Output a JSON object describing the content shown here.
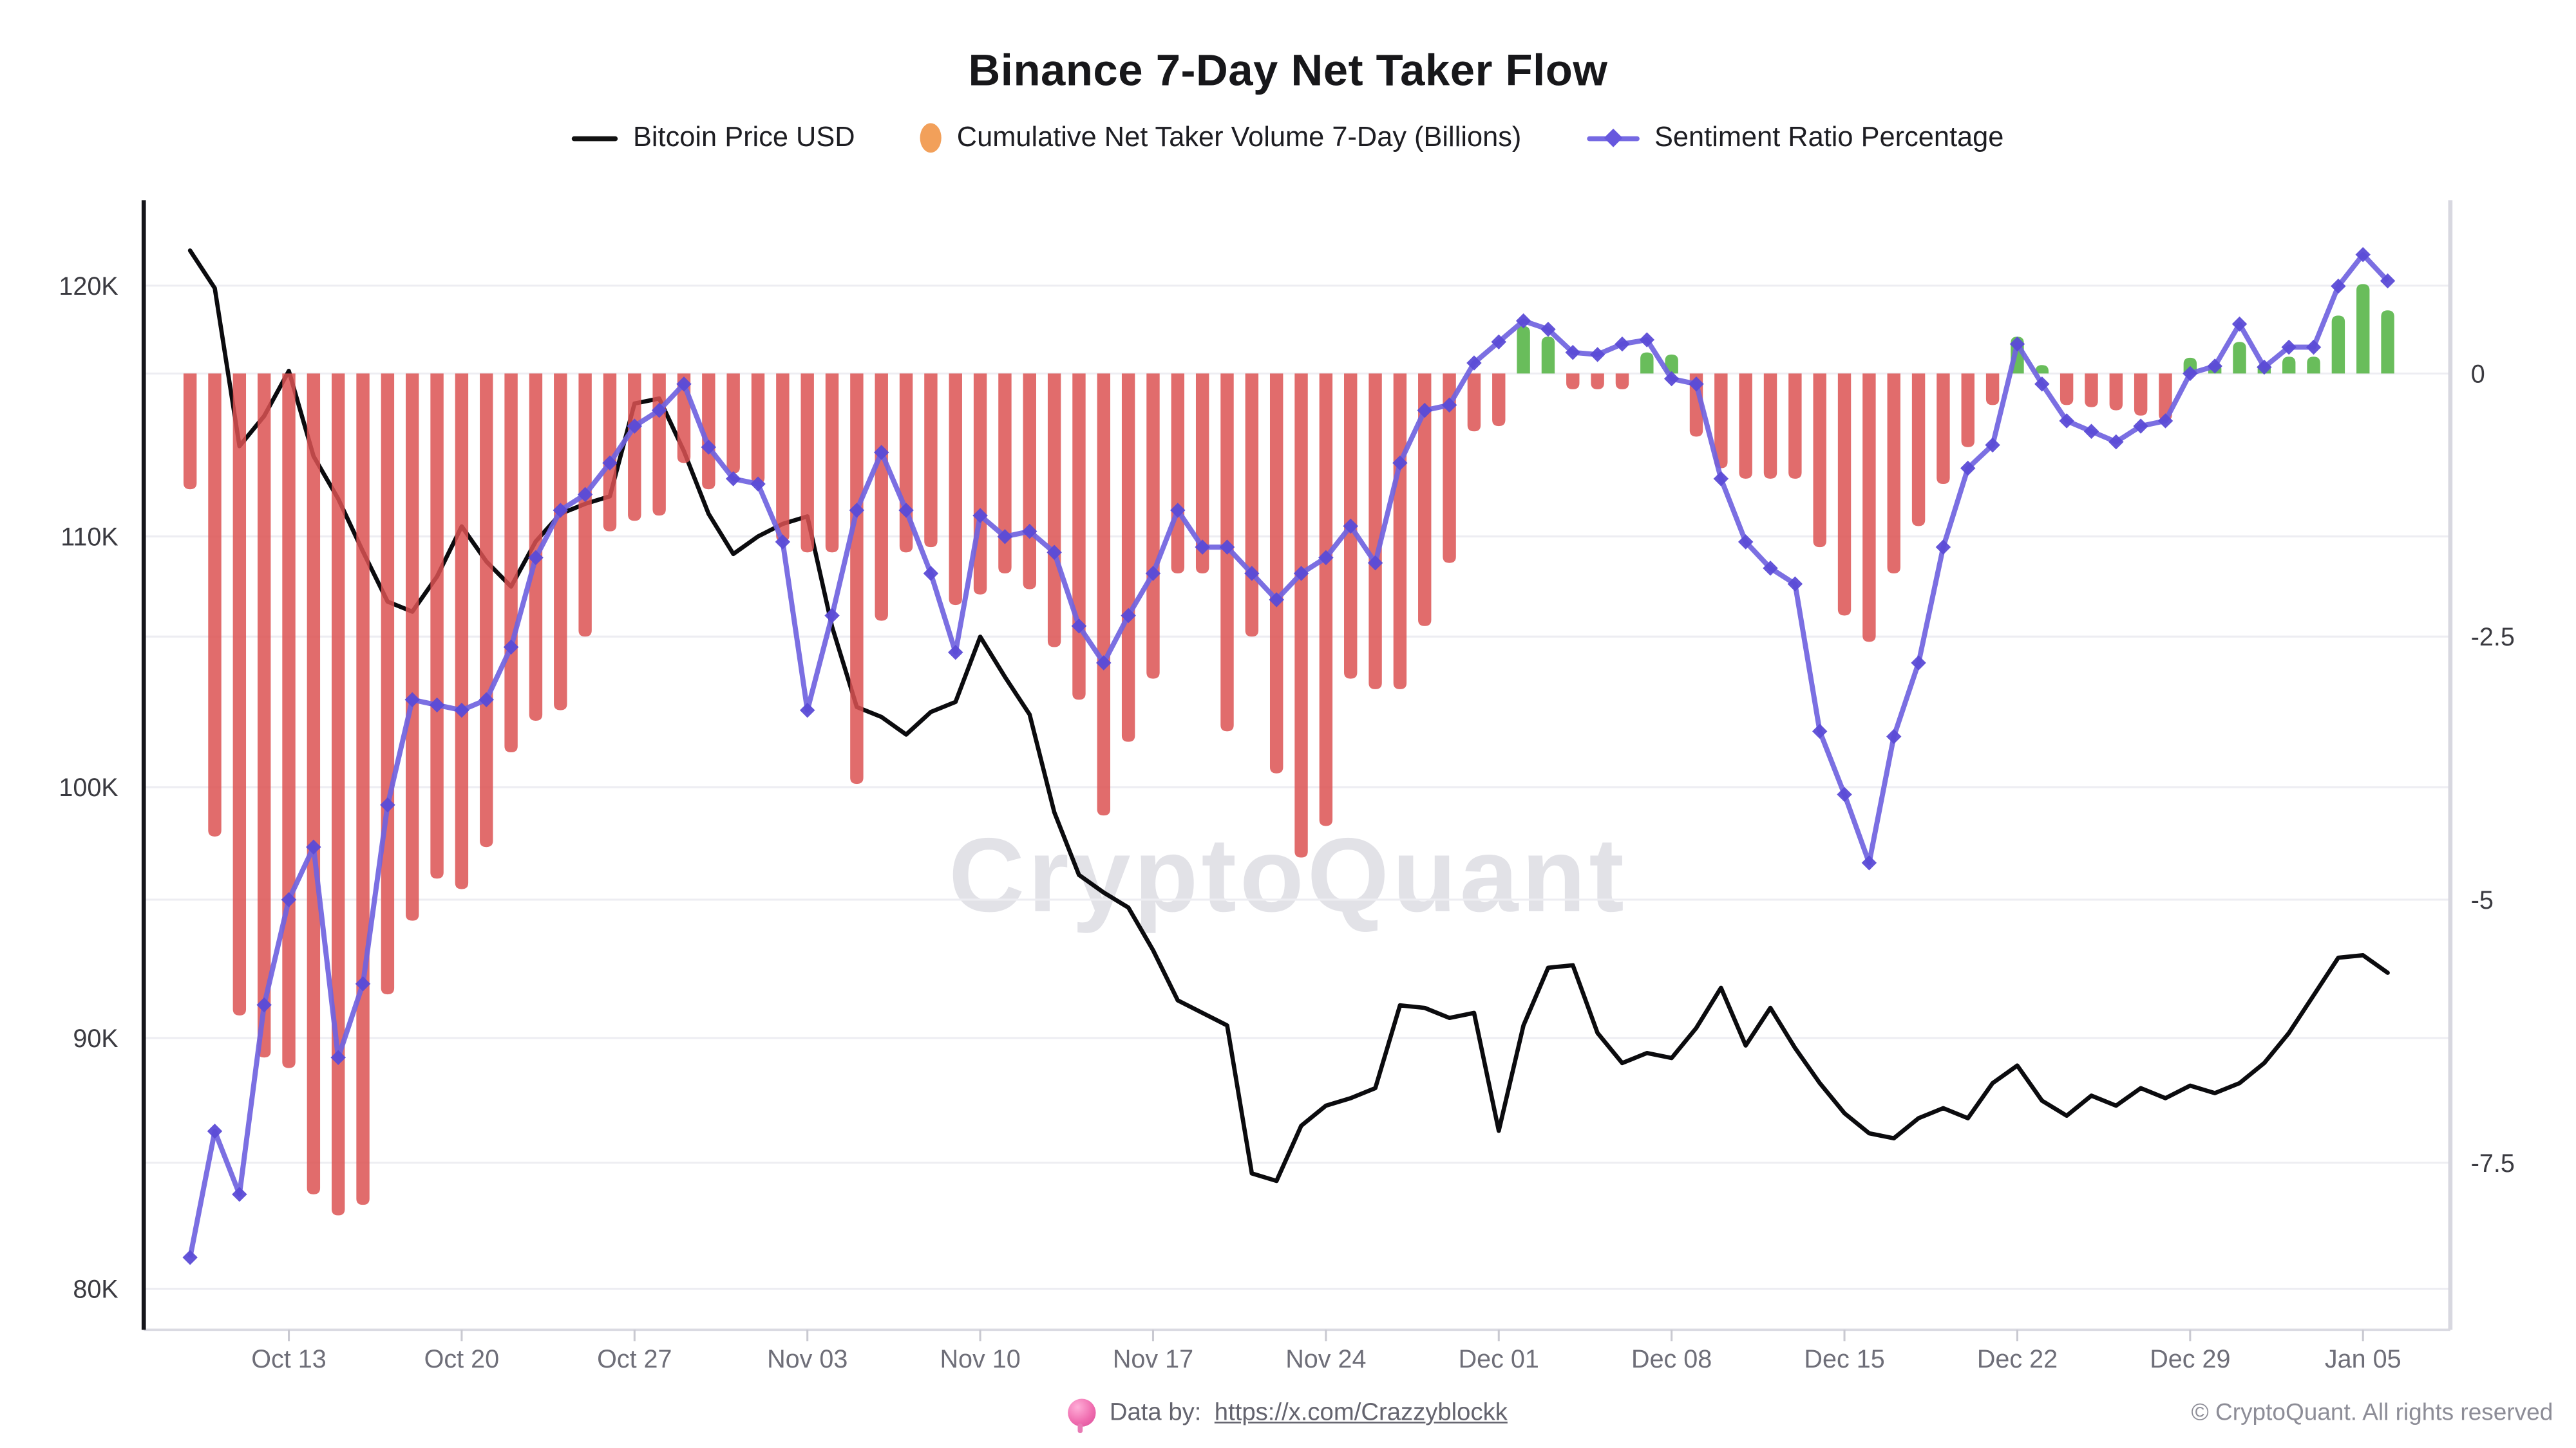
{
  "chart_data": {
    "type": "combo",
    "title": "Binance 7-Day Net Taker Flow",
    "watermark": "CryptoQuant",
    "legend_position": "top",
    "legend": [
      {
        "label": "Bitcoin Price USD",
        "marker": "black-line"
      },
      {
        "label": "Cumulative Net Taker Volume 7-Day (Billions)",
        "marker": "orange-oval"
      },
      {
        "label": "Sentiment Ratio Percentage",
        "marker": "purple-line-diamond"
      }
    ],
    "left_axis": {
      "title": "Bitcoin Price USD",
      "tick_labels": [
        "120K",
        "110K",
        "100K",
        "90K",
        "80K"
      ],
      "tick_values_k": [
        120,
        110,
        100,
        90,
        80
      ],
      "range_k": [
        79.3,
        123.5
      ]
    },
    "right_axis": {
      "title": "Net taker volume / sentiment",
      "tick_labels": [
        "0",
        "-2.5",
        "-5",
        "-7.5"
      ],
      "tick_values": [
        0,
        -2.5,
        -5,
        -7.5
      ],
      "range": [
        1.7,
        -9.1
      ]
    },
    "x_axis": {
      "tick_labels": [
        "Oct 13",
        "Oct 20",
        "Oct 27",
        "Nov 03",
        "Nov 10",
        "Nov 17",
        "Nov 24",
        "Dec 01",
        "Dec 08",
        "Dec 15",
        "Dec 22",
        "Dec 29",
        "Jan 05"
      ],
      "tick_day_indices": [
        4,
        11,
        18,
        25,
        32,
        39,
        46,
        53,
        60,
        67,
        74,
        81,
        88
      ],
      "grid": false
    },
    "dates": [
      "Oct 09",
      "Oct 10",
      "Oct 11",
      "Oct 12",
      "Oct 13",
      "Oct 14",
      "Oct 15",
      "Oct 16",
      "Oct 17",
      "Oct 18",
      "Oct 19",
      "Oct 20",
      "Oct 21",
      "Oct 22",
      "Oct 23",
      "Oct 24",
      "Oct 25",
      "Oct 26",
      "Oct 27",
      "Oct 28",
      "Oct 29",
      "Oct 30",
      "Oct 31",
      "Nov 01",
      "Nov 02",
      "Nov 03",
      "Nov 04",
      "Nov 05",
      "Nov 06",
      "Nov 07",
      "Nov 08",
      "Nov 09",
      "Nov 10",
      "Nov 11",
      "Nov 12",
      "Nov 13",
      "Nov 14",
      "Nov 15",
      "Nov 16",
      "Nov 17",
      "Nov 18",
      "Nov 19",
      "Nov 20",
      "Nov 21",
      "Nov 22",
      "Nov 23",
      "Nov 24",
      "Nov 25",
      "Nov 26",
      "Nov 27",
      "Nov 28",
      "Nov 29",
      "Nov 30",
      "Dec 01",
      "Dec 02",
      "Dec 03",
      "Dec 04",
      "Dec 05",
      "Dec 06",
      "Dec 07",
      "Dec 08",
      "Dec 09",
      "Dec 10",
      "Dec 11",
      "Dec 12",
      "Dec 13",
      "Dec 14",
      "Dec 15",
      "Dec 16",
      "Dec 17",
      "Dec 18",
      "Dec 19",
      "Dec 20",
      "Dec 21",
      "Dec 22",
      "Dec 23",
      "Dec 24",
      "Dec 25",
      "Dec 26",
      "Dec 27",
      "Dec 28",
      "Dec 29",
      "Dec 30",
      "Dec 31",
      "Jan 01",
      "Jan 02",
      "Jan 03",
      "Jan 04",
      "Jan 05",
      "Jan 06"
    ],
    "series": [
      {
        "name": "Bitcoin Price USD",
        "type": "line",
        "axis": "left",
        "color": "#0b0b0e",
        "unit": "K USD",
        "values": [
          121.4,
          119.9,
          113.6,
          114.8,
          116.6,
          113.2,
          111.5,
          109.4,
          107.4,
          107.0,
          108.4,
          110.4,
          109.0,
          108.0,
          109.8,
          110.9,
          111.3,
          111.6,
          115.3,
          115.5,
          113.4,
          110.9,
          109.3,
          110.0,
          110.5,
          110.8,
          106.4,
          103.2,
          102.8,
          102.1,
          103.0,
          103.4,
          106.0,
          104.4,
          102.9,
          99.0,
          96.5,
          95.8,
          95.2,
          93.5,
          91.5,
          91.0,
          90.5,
          84.6,
          84.3,
          86.5,
          87.3,
          87.6,
          88.0,
          91.3,
          91.2,
          90.8,
          91.0,
          86.3,
          90.5,
          92.8,
          92.9,
          90.2,
          89.0,
          89.4,
          89.2,
          90.4,
          92.0,
          89.7,
          91.2,
          89.6,
          88.2,
          87.0,
          86.2,
          86.0,
          86.8,
          87.2,
          86.8,
          88.2,
          88.9,
          87.5,
          86.9,
          87.7,
          87.3,
          88.0,
          87.6,
          88.1,
          87.8,
          88.2,
          89.0,
          90.2,
          91.7,
          93.2,
          93.3,
          92.6
        ]
      },
      {
        "name": "Cumulative Net Taker Volume 7-Day (Billions)",
        "type": "bar",
        "axis": "right",
        "unit": "billions",
        "color_negative": "#DC5252",
        "color_positive": "#4FB23E",
        "values": [
          -1.1,
          -4.4,
          -6.1,
          -6.5,
          -6.6,
          -7.8,
          -8.0,
          -7.9,
          -5.9,
          -5.2,
          -4.8,
          -4.9,
          -4.5,
          -3.6,
          -3.3,
          -3.2,
          -2.5,
          -1.5,
          -1.4,
          -1.35,
          -0.85,
          -1.1,
          -0.95,
          -1.05,
          -1.6,
          -1.7,
          -1.7,
          -3.9,
          -2.35,
          -1.7,
          -1.65,
          -2.2,
          -2.1,
          -1.9,
          -2.05,
          -2.6,
          -3.1,
          -4.2,
          -3.5,
          -2.9,
          -1.9,
          -1.9,
          -3.4,
          -2.5,
          -3.8,
          -4.6,
          -4.3,
          -2.9,
          -3.0,
          -3.0,
          -2.4,
          -1.8,
          -0.55,
          -0.5,
          0.45,
          0.35,
          -0.15,
          -0.15,
          -0.15,
          0.2,
          0.18,
          -0.6,
          -0.9,
          -1.0,
          -1.0,
          -1.0,
          -1.65,
          -2.3,
          -2.55,
          -1.9,
          -1.45,
          -1.05,
          -0.7,
          -0.3,
          0.35,
          0.08,
          -0.3,
          -0.32,
          -0.35,
          -0.4,
          -0.45,
          0.15,
          0.1,
          0.3,
          0.1,
          0.16,
          0.16,
          0.55,
          0.85,
          0.6
        ]
      },
      {
        "name": "Sentiment Ratio Percentage",
        "type": "line",
        "axis": "right",
        "color": "#7063E0",
        "marker": "diamond",
        "unit": "%",
        "values": [
          -8.4,
          -7.2,
          -7.8,
          -6.0,
          -5.0,
          -4.5,
          -6.5,
          -5.8,
          -4.1,
          -3.1,
          -3.15,
          -3.2,
          -3.1,
          -2.6,
          -1.75,
          -1.3,
          -1.15,
          -0.85,
          -0.5,
          -0.35,
          -0.1,
          -0.7,
          -1.0,
          -1.05,
          -1.6,
          -3.2,
          -2.3,
          -1.3,
          -0.75,
          -1.3,
          -1.9,
          -2.65,
          -1.35,
          -1.55,
          -1.5,
          -1.7,
          -2.4,
          -2.75,
          -2.3,
          -1.9,
          -1.3,
          -1.65,
          -1.65,
          -1.9,
          -2.15,
          -1.9,
          -1.75,
          -1.45,
          -1.8,
          -0.85,
          -0.35,
          -0.3,
          0.1,
          0.3,
          0.5,
          0.42,
          0.2,
          0.18,
          0.28,
          0.32,
          -0.05,
          -0.1,
          -1.0,
          -1.6,
          -1.85,
          -2.0,
          -3.4,
          -4.0,
          -4.65,
          -3.45,
          -2.75,
          -1.65,
          -0.9,
          -0.68,
          0.28,
          -0.1,
          -0.45,
          -0.55,
          -0.65,
          -0.5,
          -0.45,
          0.0,
          0.07,
          0.47,
          0.06,
          0.25,
          0.25,
          0.83,
          1.13,
          0.88
        ]
      }
    ]
  },
  "footer": {
    "data_by_prefix": "Data by:",
    "link_text": "https://x.com/Crazzyblockk",
    "copyright": "© CryptoQuant. All rights reserved"
  }
}
